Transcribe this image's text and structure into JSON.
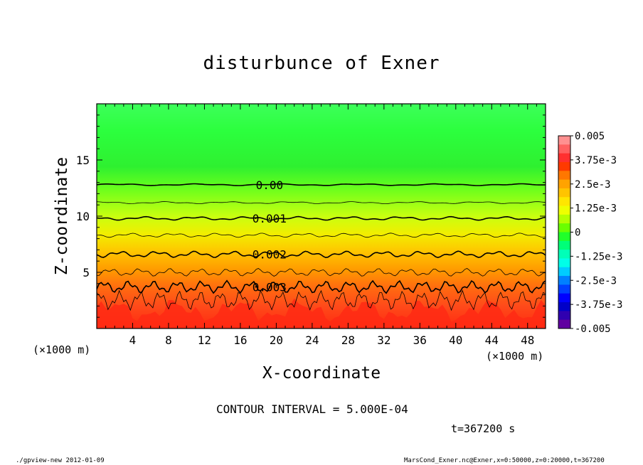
{
  "chart_data": {
    "type": "heatmap",
    "title": "disturbunce of Exner",
    "xlabel": "X-coordinate",
    "ylabel": "Z-coordinate",
    "x_unit_label": "(×1000 m)",
    "y_unit_label": "(×1000 m)",
    "xlim": [
      0,
      50
    ],
    "ylim": [
      0,
      20
    ],
    "x_ticks": [
      4,
      8,
      12,
      16,
      20,
      24,
      28,
      32,
      36,
      40,
      44,
      48
    ],
    "y_ticks": [
      5,
      10,
      15
    ],
    "contour_labels": [
      {
        "text": "0.00",
        "x": 17.5,
        "z": 12.8
      },
      {
        "text": "0.001",
        "x": 17.5,
        "z": 9.8
      },
      {
        "text": "0.002",
        "x": 17.5,
        "z": 6.6
      },
      {
        "text": "0.003",
        "x": 17.5,
        "z": 3.7
      }
    ],
    "contour_interval_text": "CONTOUR INTERVAL = 5.000E-04",
    "colorbar": {
      "range": [
        -0.005,
        0.005
      ],
      "tick_labels": [
        "0.005",
        "3.75e-3",
        "2.5e-3",
        "1.25e-3",
        "0",
        "-1.25e-3",
        "-2.5e-3",
        "-3.75e-3",
        "-0.005"
      ],
      "colors": [
        "#ff9090",
        "#ff6060",
        "#ff3030",
        "#ff3a00",
        "#ff7700",
        "#ffa300",
        "#ffc400",
        "#ffe600",
        "#eeff00",
        "#b4ff00",
        "#6aff00",
        "#20ff2a",
        "#00ff78",
        "#00ffb8",
        "#00ffe8",
        "#00ccff",
        "#0080ff",
        "#0040ff",
        "#0000ff",
        "#0000c8",
        "#3000b0",
        "#6000a0"
      ]
    },
    "time_label": "t=367200 s"
  },
  "footer": {
    "left": "./gpview-new   2012-01-09",
    "right": "MarsCond_Exner.nc@Exner,x=0:50000,z=0:20000,t=367200"
  }
}
